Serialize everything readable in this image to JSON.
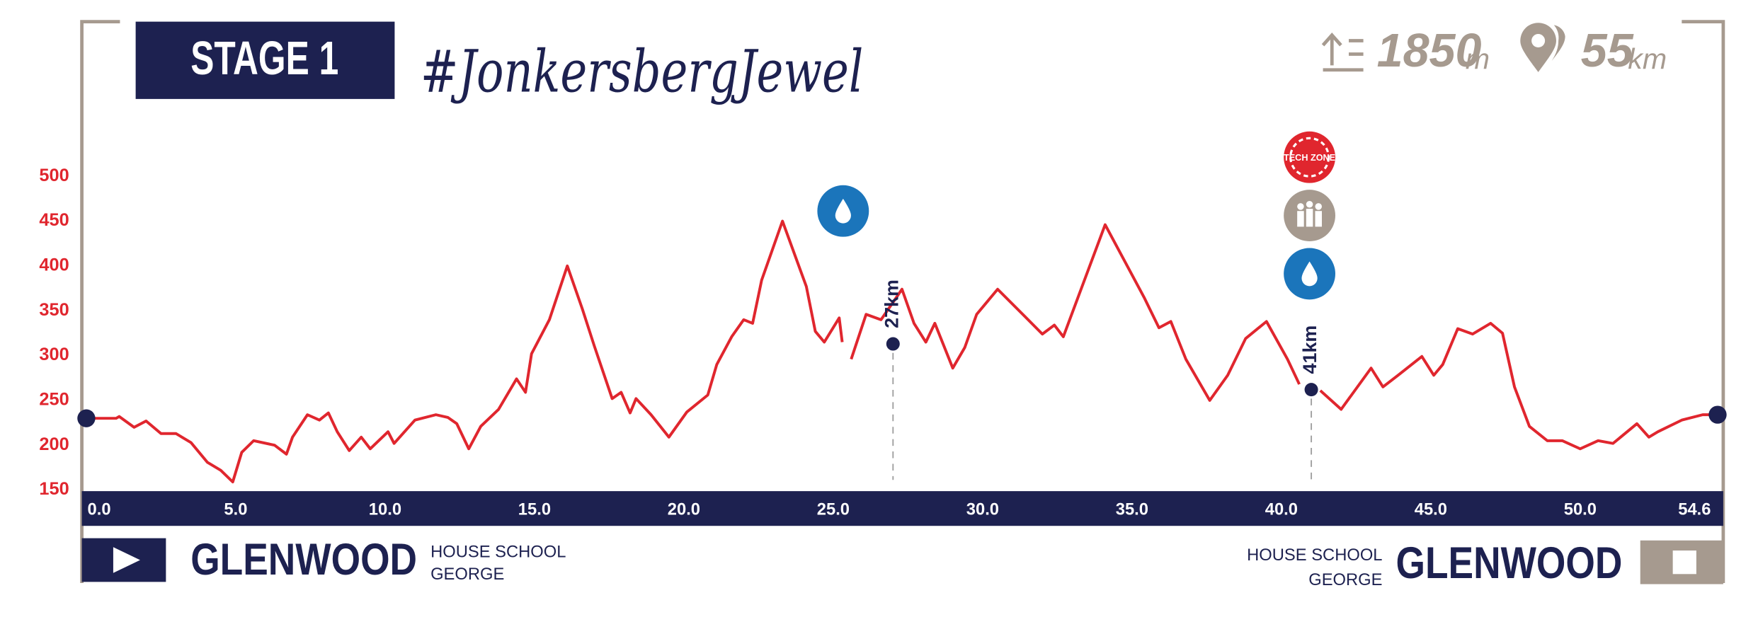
{
  "chart_data": {
    "type": "line",
    "title": "STAGE 1",
    "subtitle": "#JonkersbergJewel",
    "stats": {
      "climb": {
        "value": "1850",
        "unit": "m"
      },
      "distance": {
        "value": "55",
        "unit": "km"
      }
    },
    "start": {
      "name": "GLENWOOD",
      "line1": "HOUSE SCHOOL",
      "line2": "GEORGE"
    },
    "finish": {
      "name": "GLENWOOD",
      "line1": "HOUSE SCHOOL",
      "line2": "GEORGE"
    },
    "icon_label": "TECH ZONE",
    "markers": [
      {
        "km": 27,
        "label": "27km",
        "elevation": 313
      },
      {
        "km": 41,
        "label": "41km",
        "elevation": 262
      }
    ],
    "series": [
      {
        "name": "Elevation",
        "color": "#e0262e",
        "x": [
          0,
          1,
          1.1,
          1.6,
          2,
          2.5,
          3,
          3.5,
          4.05,
          4.5,
          4.9,
          5.2,
          5.6,
          6.3,
          6.7,
          6.9,
          7.4,
          7.8,
          8.1,
          8.4,
          8.8,
          9.2,
          9.5,
          10.1,
          10.3,
          11,
          11.7,
          12.1,
          12.4,
          12.8,
          13.2,
          13.8,
          14.4,
          14.7,
          14.9,
          15.5,
          16.1,
          16.6,
          17,
          17.6,
          17.9,
          18.2,
          18.4,
          18.9,
          19.5,
          20.1,
          20.8,
          21.1,
          21.6,
          22,
          22.3,
          22.6,
          23.3,
          24.1,
          24.4,
          24.7,
          25.2,
          25.3,
          25.4,
          25.6,
          26.1,
          26.6,
          27.3,
          27.7,
          28.1,
          28.4,
          29,
          29.4,
          29.8,
          30.5,
          31.4,
          32,
          32.4,
          32.7,
          34.1,
          35.4,
          35.9,
          36.3,
          36.8,
          37.6,
          38.2,
          38.8,
          39.5,
          40.2,
          40.6,
          40.9,
          41.3,
          42,
          43,
          43.4,
          43.9,
          44.7,
          45.1,
          45.4,
          45.9,
          46.4,
          47,
          47.4,
          47.8,
          48.3,
          48.9,
          49.4,
          50,
          50.6,
          51.1,
          51.9,
          52.3,
          52.6,
          53.4,
          54.1,
          54.6
        ],
        "values": [
          230,
          230,
          232,
          220,
          227,
          213,
          213,
          203,
          181,
          172,
          159,
          192,
          205,
          200,
          190,
          209,
          234,
          228,
          236,
          215,
          194,
          209,
          196,
          215,
          202,
          228,
          234,
          231,
          224,
          196,
          221,
          240,
          274,
          259,
          302,
          340,
          400,
          352,
          311,
          252,
          259,
          236,
          252,
          234,
          209,
          237,
          256,
          290,
          321,
          340,
          336,
          384,
          450,
          377,
          327,
          315,
          342,
          315,
          null,
          296,
          346,
          340,
          374,
          336,
          315,
          336,
          286,
          309,
          346,
          374,
          344,
          324,
          334,
          321,
          446,
          365,
          331,
          338,
          296,
          250,
          278,
          319,
          338,
          296,
          268,
          null,
          261,
          240,
          286,
          265,
          278,
          299,
          278,
          290,
          330,
          324,
          336,
          325,
          265,
          221,
          205,
          205,
          196,
          205,
          202,
          224,
          209,
          215,
          228,
          234,
          234
        ]
      }
    ],
    "xlim": [
      0,
      54.6
    ],
    "xticks": [
      {
        "value": 0,
        "label": "0.0"
      },
      {
        "value": 5,
        "label": "5.0"
      },
      {
        "value": 10,
        "label": "10.0"
      },
      {
        "value": 15,
        "label": "15.0"
      },
      {
        "value": 20,
        "label": "20.0"
      },
      {
        "value": 25,
        "label": "25.0"
      },
      {
        "value": 30,
        "label": "30.0"
      },
      {
        "value": 35,
        "label": "35.0"
      },
      {
        "value": 40,
        "label": "40.0"
      },
      {
        "value": 45,
        "label": "45.0"
      },
      {
        "value": 50,
        "label": "50.0"
      },
      {
        "value": 54.6,
        "label": "54.6"
      }
    ],
    "ylim": [
      150,
      500
    ],
    "yticks": [
      150,
      200,
      250,
      300,
      350,
      400,
      450,
      500
    ]
  }
}
